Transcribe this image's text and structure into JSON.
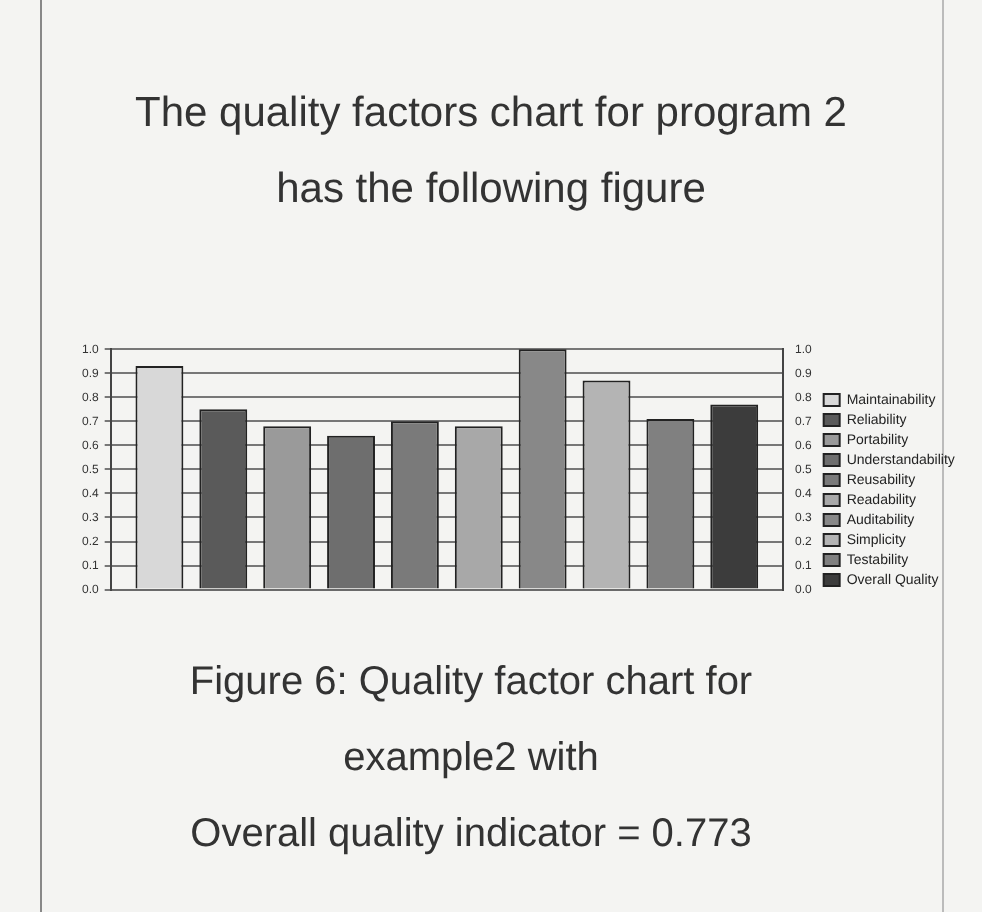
{
  "chart_data": {
    "type": "bar",
    "title": "The quality factors chart for program 2 has the following figure",
    "annotations": [
      "Figure 6: Quality factor chart for",
      "example2 with",
      "Overall quality indicator = 0.773"
    ],
    "categories": [
      null
    ],
    "series": [
      {
        "name": "Maintainability",
        "color": "#d8d8d8",
        "values": [
          0.93
        ]
      },
      {
        "name": "Reliability",
        "color": "#5a5a5a",
        "values": [
          0.75
        ]
      },
      {
        "name": "Portability",
        "color": "#9a9a9a",
        "values": [
          0.68
        ]
      },
      {
        "name": "Understandability",
        "color": "#6e6e6e",
        "values": [
          0.64
        ]
      },
      {
        "name": "Reusability",
        "color": "#7a7a7a",
        "values": [
          0.7
        ]
      },
      {
        "name": "Readability",
        "color": "#a8a8a8",
        "values": [
          0.68
        ]
      },
      {
        "name": "Auditability",
        "color": "#888888",
        "values": [
          1.0
        ]
      },
      {
        "name": "Simplicity",
        "color": "#b4b4b4",
        "values": [
          0.87
        ]
      },
      {
        "name": "Testability",
        "color": "#808080",
        "values": [
          0.71
        ]
      },
      {
        "name": "Overall Quality",
        "color": "#3c3c3c",
        "values": [
          0.77
        ]
      }
    ],
    "ylim": [
      0,
      1
    ],
    "yticks": [
      {
        "value": 0,
        "label": "0.0"
      },
      {
        "value": 0.1,
        "label": "0.1"
      },
      {
        "value": 0.2,
        "label": "0.2"
      },
      {
        "value": 0.3,
        "label": "0.3"
      },
      {
        "value": 0.4,
        "label": "0.4"
      },
      {
        "value": 0.5,
        "label": "0.5"
      },
      {
        "value": 0.6,
        "label": "0.6"
      },
      {
        "value": 0.7,
        "label": "0.7"
      },
      {
        "value": 0.8,
        "label": "0.8"
      },
      {
        "value": 0.9,
        "label": "0.9"
      },
      {
        "value": 1,
        "label": "1.0"
      }
    ],
    "y2lim": [
      0,
      1
    ],
    "y2ticks": [
      {
        "value": 0,
        "label": "0.0"
      },
      {
        "value": 0.1,
        "label": "0.1"
      },
      {
        "value": 0.2,
        "label": "0.2"
      },
      {
        "value": 0.3,
        "label": "0.3"
      },
      {
        "value": 0.4,
        "label": "0.4"
      },
      {
        "value": 0.5,
        "label": "0.5"
      },
      {
        "value": 0.6,
        "label": "0.6"
      },
      {
        "value": 0.7,
        "label": "0.7"
      },
      {
        "value": 0.8,
        "label": "0.8"
      },
      {
        "value": 0.9,
        "label": "0.9"
      },
      {
        "value": 1,
        "label": "1.0"
      }
    ],
    "grid": "y",
    "legend": "right"
  }
}
